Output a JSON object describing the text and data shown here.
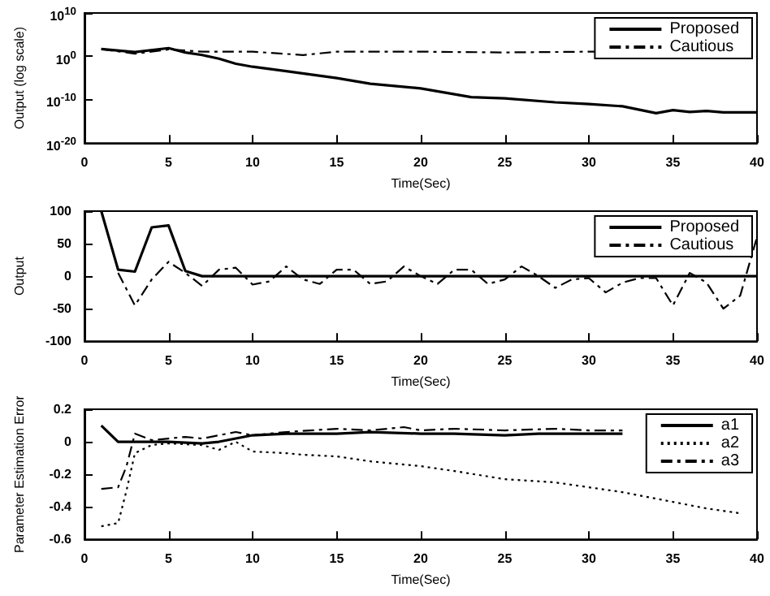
{
  "chart_data": [
    {
      "type": "line",
      "xlabel": "Time(Sec)",
      "ylabel": "Output (log scale)",
      "log": "y",
      "xlim": [
        0,
        40
      ],
      "xticks": [
        0,
        5,
        10,
        15,
        20,
        25,
        30,
        35,
        40
      ],
      "ylim": [
        1e-20,
        10000000000.0
      ],
      "yticks": [
        {
          "value": 1e-20,
          "label": "10$^{-20}$"
        },
        {
          "value": 1e-10,
          "label": "10$^{-10}$"
        },
        {
          "value": 1,
          "label": "10$^{0}$"
        },
        {
          "value": 10000000000.0,
          "label": "10$^{10}$"
        }
      ],
      "legend": "top right",
      "grid": false,
      "marker": "none",
      "series": [
        {
          "name": "Proposed",
          "color": "#000000",
          "line_style": "solid",
          "x": [
            1,
            3,
            5,
            6,
            7,
            8,
            9,
            10,
            12,
            15,
            17,
            20,
            23,
            25,
            28,
            30,
            32,
            34,
            35,
            36,
            37,
            38,
            40
          ],
          "values": [
            50,
            10,
            80,
            8,
            2,
            0.3,
            0.02,
            0.004,
            0.0004,
            1e-05,
            5e-07,
            4e-08,
            4e-10,
            2e-10,
            2.5e-11,
            1e-11,
            3e-12,
            8e-14,
            4e-13,
            1.5e-13,
            2.5e-13,
            1.2e-13,
            1.2e-13
          ]
        },
        {
          "name": "Cautious",
          "color": "#000000",
          "line_style": "dashed",
          "x": [
            1,
            3,
            5,
            7,
            10,
            13,
            15,
            20,
            25,
            30,
            32
          ],
          "values": [
            50,
            4,
            40,
            12,
            12,
            2,
            12,
            12,
            8,
            12,
            12
          ]
        }
      ]
    },
    {
      "type": "line",
      "xlabel": "Time(Sec)",
      "ylabel": "Output",
      "xlim": [
        0,
        40
      ],
      "xticks": [
        0,
        5,
        10,
        15,
        20,
        25,
        30,
        35,
        40
      ],
      "ylim": [
        -100,
        100
      ],
      "yticks": [
        -100,
        -50,
        0,
        50,
        100
      ],
      "legend": "top right",
      "grid": false,
      "marker": "none",
      "series": [
        {
          "name": "Proposed",
          "color": "#000000",
          "line_style": "solid",
          "x": [
            1,
            2,
            3,
            4,
            5,
            6,
            7,
            40
          ],
          "values": [
            100,
            10,
            7,
            75,
            78,
            8,
            0,
            0
          ]
        },
        {
          "name": "Cautious",
          "color": "#000000",
          "line_style": "dashed",
          "x": [
            2,
            3,
            4,
            5,
            6,
            7,
            8,
            9,
            10,
            11,
            12,
            13,
            14,
            15,
            16,
            17,
            18,
            19,
            20,
            21,
            22,
            23,
            24,
            25,
            26,
            27,
            28,
            29,
            30,
            31,
            32,
            33,
            34,
            35,
            36,
            37,
            38,
            39,
            40
          ],
          "values": [
            5,
            -45,
            -5,
            22,
            5,
            -15,
            10,
            13,
            -13,
            -8,
            15,
            -5,
            -12,
            10,
            10,
            -12,
            -8,
            15,
            0,
            -12,
            10,
            10,
            -12,
            -5,
            15,
            0,
            -18,
            -5,
            -3,
            -25,
            -10,
            -3,
            -3,
            -45,
            5,
            -10,
            -50,
            -30,
            60
          ]
        }
      ]
    },
    {
      "type": "line",
      "xlabel": "Time(Sec)",
      "ylabel": "Parameter Estimation Error",
      "xlim": [
        0,
        40
      ],
      "xticks": [
        0,
        5,
        10,
        15,
        20,
        25,
        30,
        35,
        40
      ],
      "ylim": [
        -0.6,
        0.2
      ],
      "yticks": [
        -0.6,
        -0.4,
        -0.2,
        0,
        0.2
      ],
      "legend": "top right",
      "grid": false,
      "marker": "none",
      "series": [
        {
          "name": "a1",
          "color": "#000000",
          "line_style": "solid",
          "x": [
            1,
            2,
            3,
            5,
            7,
            8,
            10,
            12,
            15,
            17,
            20,
            22,
            25,
            27,
            30,
            32
          ],
          "values": [
            0.1,
            0,
            0,
            0,
            -0.01,
            0,
            0.04,
            0.05,
            0.05,
            0.06,
            0.05,
            0.05,
            0.04,
            0.05,
            0.05,
            0.05
          ]
        },
        {
          "name": "a2",
          "color": "#000000",
          "line_style": "dotted",
          "x": [
            1,
            2,
            2.5,
            3,
            4,
            5,
            7,
            8,
            9,
            10,
            12,
            13,
            15,
            17,
            20,
            22,
            25,
            28,
            30,
            32,
            36,
            37,
            39
          ],
          "values": [
            -0.52,
            -0.5,
            -0.3,
            -0.07,
            -0.02,
            -0.01,
            -0.02,
            -0.05,
            0,
            -0.06,
            -0.07,
            -0.08,
            -0.09,
            -0.12,
            -0.15,
            -0.18,
            -0.23,
            -0.25,
            -0.28,
            -0.31,
            -0.39,
            -0.41,
            -0.44
          ]
        },
        {
          "name": "a3",
          "color": "#000000",
          "line_style": "dashed",
          "x": [
            1,
            2,
            2.5,
            3,
            4,
            5,
            6,
            7,
            8,
            9,
            10,
            12,
            15,
            17,
            19,
            20,
            22,
            25,
            28,
            30,
            32
          ],
          "values": [
            -0.29,
            -0.28,
            -0.15,
            0.05,
            0.01,
            0.02,
            0.03,
            0.02,
            0.04,
            0.06,
            0.04,
            0.06,
            0.08,
            0.07,
            0.09,
            0.07,
            0.08,
            0.07,
            0.08,
            0.07,
            0.07
          ]
        }
      ]
    }
  ]
}
